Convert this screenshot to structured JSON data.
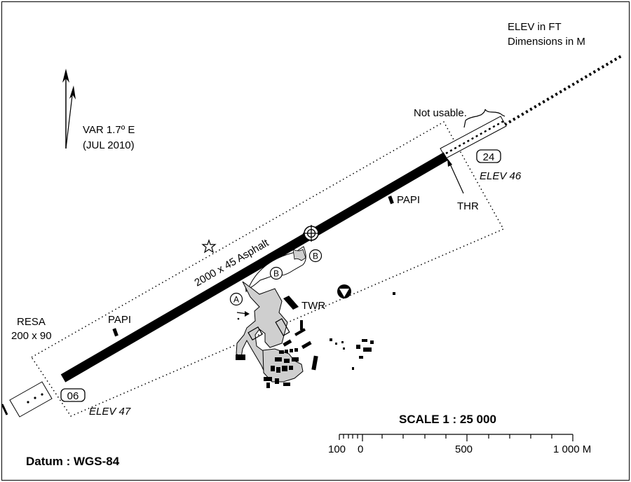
{
  "notes": {
    "elev_unit": "ELEV in FT",
    "dimensions_unit": "Dimensions in M"
  },
  "variation": {
    "value": "VAR 1.7º E",
    "date": "(JUL 2010)"
  },
  "runway": {
    "dimensions": "2000 x 45 Asphalt",
    "designator_ne": "24",
    "designator_sw": "06",
    "elev_ne": "ELEV 46",
    "elev_sw": "ELEV 47",
    "threshold": "THR",
    "not_usable": "Not usable.",
    "resa_title": "RESA",
    "resa_dims": "200 x 90"
  },
  "papi_ne": "PAPI",
  "papi_sw": "PAPI",
  "taxiways": {
    "a": "A",
    "b1": "B",
    "b2": "B"
  },
  "tower": "TWR",
  "scale": {
    "title": "SCALE  1 : 25 000",
    "labels": [
      "100",
      "0",
      "500",
      "1 000 M"
    ]
  },
  "datum": "Datum :  WGS-84",
  "icons": [
    "north-arrow-icon",
    "aerodrome-reference-point-icon",
    "beacon-icon",
    "wind-direction-indicator-icon",
    "obstacle-marker-icon"
  ]
}
